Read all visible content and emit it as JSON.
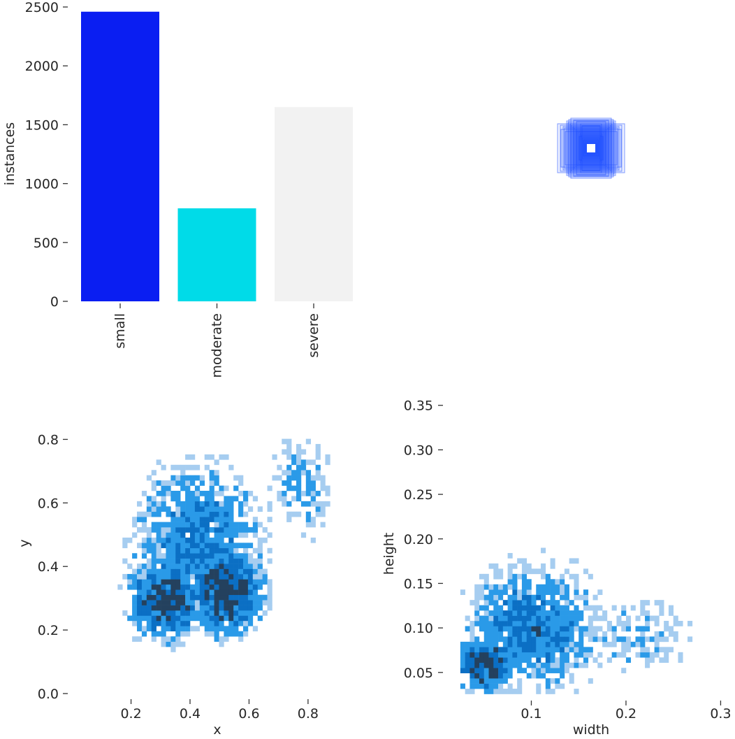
{
  "colors": {
    "small": "#0a1ef2",
    "moderate": "#00dbe8",
    "severe": "#f2f2f2",
    "hist_light": "#a6cdf0",
    "hist_mid": "#2a9ae8",
    "hist_dark": "#0b6fc4",
    "hist_darkest": "#24415e",
    "box_blue": "#1e4dff",
    "axis_text": "#262626"
  },
  "chart_data": [
    {
      "type": "bar",
      "categories": [
        "small",
        "moderate",
        "severe"
      ],
      "values": [
        2460,
        790,
        1650
      ],
      "xlabel": "",
      "ylabel": "instances",
      "ylim": [
        0,
        2500
      ],
      "yticks": [
        "0",
        "500",
        "1000",
        "1500",
        "2000",
        "2500"
      ],
      "grid": false
    },
    {
      "type": "other",
      "description_free": true,
      "grid": false
    },
    {
      "type": "heatmap",
      "xlabel": "x",
      "ylabel": "y",
      "xlim": [
        0.04,
        0.94
      ],
      "ylim": [
        0.0,
        0.9
      ],
      "xticks": [
        "0.2",
        "0.4",
        "0.6",
        "0.8"
      ],
      "yticks": [
        "0.0",
        "0.2",
        "0.4",
        "0.6",
        "0.8"
      ],
      "grid": false
    },
    {
      "type": "heatmap",
      "xlabel": "width",
      "ylabel": "height",
      "xlim": [
        0.0,
        0.31
      ],
      "ylim": [
        0.02,
        0.36
      ],
      "xticks": [
        "0.1",
        "0.2",
        "0.3"
      ],
      "yticks": [
        "0.05",
        "0.10",
        "0.15",
        "0.20",
        "0.25",
        "0.30",
        "0.35"
      ],
      "grid": false
    }
  ]
}
